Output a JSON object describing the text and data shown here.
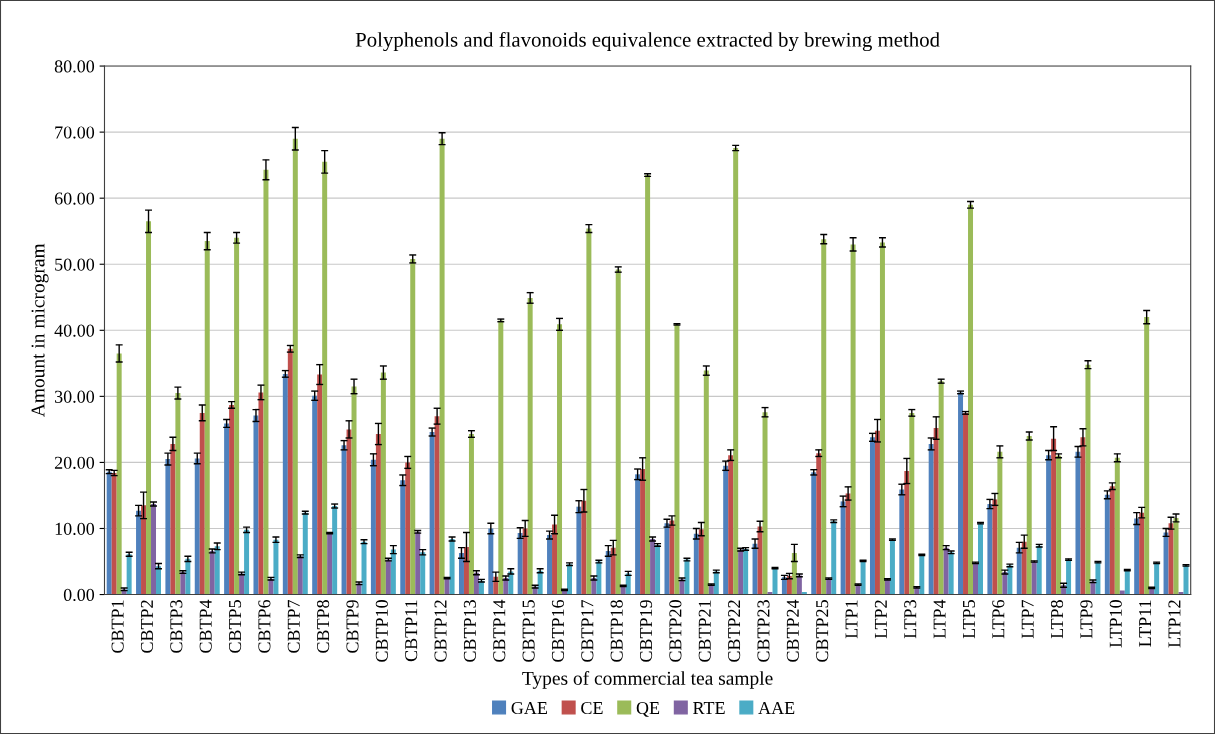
{
  "chart_data": {
    "type": "bar",
    "title": "Polyphenols and flavonoids equivalence extracted by brewing method",
    "xlabel": "Types of commercial tea sample",
    "ylabel": "Amount in microgram",
    "categories": [
      "CBTP1",
      "CBTP2",
      "CBTP3",
      "CBTP4",
      "CBTP5",
      "CBTP6",
      "CBTP7",
      "CBTP8",
      "CBTP9",
      "CBTP10",
      "CBTP11",
      "CBTP12",
      "CBTP13",
      "CBTP14",
      "CBTP15",
      "CBTP16",
      "CBTP17",
      "CBTP18",
      "CBTP19",
      "CBTP20",
      "CBTP21",
      "CBTP22",
      "CBTP23",
      "CBTP24",
      "CBTP25",
      "LTP1",
      "LTP2",
      "LTP3",
      "LTP4",
      "LTP5",
      "LTP6",
      "LTP7",
      "LTP8",
      "LTP9",
      "LTP10",
      "LTP11",
      "LTP12"
    ],
    "series": [
      {
        "name": "GAE",
        "color": "#4f81bd",
        "values": [
          18.6,
          12.7,
          20.5,
          20.6,
          25.9,
          27.1,
          33.4,
          30.1,
          22.6,
          20.4,
          17.3,
          24.6,
          6.3,
          10.0,
          9.3,
          9.0,
          13.3,
          6.6,
          18.2,
          10.8,
          9.2,
          19.5,
          7.7,
          2.6,
          18.5,
          14.1,
          23.8,
          15.9,
          22.8,
          30.6,
          13.7,
          7.1,
          21.1,
          21.6,
          15.1,
          11.5,
          9.4
        ],
        "errors": [
          0.3,
          0.8,
          0.9,
          0.8,
          0.6,
          0.9,
          0.5,
          0.7,
          0.7,
          0.9,
          0.8,
          0.6,
          0.8,
          0.8,
          0.8,
          0.6,
          0.9,
          0.8,
          0.8,
          0.6,
          0.8,
          0.7,
          0.7,
          0.3,
          0.4,
          0.8,
          0.6,
          0.8,
          0.9,
          0.2,
          0.7,
          0.8,
          0.7,
          0.8,
          0.6,
          0.9,
          0.6
        ]
      },
      {
        "name": "CE",
        "color": "#c0504d",
        "values": [
          18.4,
          13.5,
          22.8,
          27.5,
          28.7,
          30.6,
          37.2,
          33.3,
          25.0,
          24.3,
          20.0,
          27.0,
          7.2,
          2.7,
          10.0,
          10.6,
          14.2,
          7.1,
          19.0,
          11.2,
          9.9,
          21.1,
          10.3,
          2.8,
          21.4,
          15.3,
          24.8,
          18.7,
          25.2,
          27.5,
          14.4,
          8.0,
          23.6,
          23.8,
          16.4,
          12.4,
          10.8
        ],
        "errors": [
          0.4,
          2.0,
          1.0,
          1.2,
          0.5,
          1.1,
          0.5,
          1.5,
          1.3,
          1.6,
          0.9,
          1.2,
          2.2,
          0.7,
          1.2,
          1.4,
          1.7,
          1.1,
          1.7,
          0.7,
          1.0,
          0.8,
          0.8,
          0.4,
          0.5,
          1.0,
          1.7,
          1.9,
          1.7,
          0.2,
          0.9,
          1.0,
          1.8,
          1.3,
          0.5,
          0.8,
          0.9
        ]
      },
      {
        "name": "QE",
        "color": "#9bbb59",
        "values": [
          36.5,
          56.5,
          30.5,
          53.5,
          54.0,
          64.3,
          69.0,
          65.5,
          31.5,
          33.6,
          50.8,
          69.0,
          24.3,
          41.5,
          44.9,
          40.9,
          55.4,
          49.2,
          63.5,
          40.9,
          33.9,
          67.6,
          27.6,
          6.3,
          53.8,
          53.0,
          53.3,
          27.5,
          32.3,
          59.0,
          21.6,
          24.0,
          21.0,
          34.8,
          20.7,
          42.0,
          11.6
        ],
        "errors": [
          1.3,
          1.7,
          0.9,
          1.3,
          0.8,
          1.5,
          1.7,
          1.7,
          1.1,
          1.0,
          0.6,
          0.9,
          0.5,
          0.2,
          0.8,
          0.9,
          0.6,
          0.4,
          0.2,
          0.1,
          0.7,
          0.4,
          0.7,
          1.3,
          0.7,
          1.0,
          0.7,
          0.5,
          0.3,
          0.5,
          0.9,
          0.6,
          0.3,
          0.6,
          0.6,
          1.0,
          0.6
        ]
      },
      {
        "name": "RTE",
        "color": "#8064a2",
        "values": [
          0.8,
          13.7,
          3.4,
          6.6,
          3.2,
          2.4,
          5.8,
          9.3,
          1.7,
          5.3,
          9.5,
          2.5,
          3.3,
          2.5,
          1.2,
          0.7,
          2.5,
          1.3,
          8.4,
          2.3,
          1.5,
          6.8,
          0.4,
          2.9,
          2.4,
          1.5,
          2.3,
          1.1,
          7.1,
          4.8,
          3.4,
          5.0,
          1.4,
          2.0,
          0.6,
          1.0,
          0.4
        ],
        "errors": [
          0.2,
          0.3,
          0.2,
          0.3,
          0.2,
          0.2,
          0.2,
          0.1,
          0.2,
          0.2,
          0.2,
          0.1,
          0.3,
          0.3,
          0.2,
          0.1,
          0.3,
          0.1,
          0.3,
          0.2,
          0.1,
          0.2,
          null,
          0.2,
          0.1,
          0.1,
          0.1,
          0.1,
          0.3,
          0.1,
          0.3,
          0.1,
          0.3,
          0.2,
          null,
          0.1,
          null
        ]
      },
      {
        "name": "AAE",
        "color": "#4bacc6",
        "values": [
          6.1,
          4.3,
          5.4,
          7.3,
          9.8,
          8.3,
          12.4,
          13.4,
          8.0,
          6.8,
          6.4,
          8.4,
          2.1,
          3.5,
          3.6,
          4.6,
          5.0,
          3.2,
          7.5,
          5.3,
          3.5,
          6.9,
          4.0,
          0.4,
          11.1,
          5.1,
          8.3,
          6.0,
          6.4,
          10.8,
          4.4,
          7.4,
          5.3,
          4.9,
          3.7,
          4.8,
          4.4
        ],
        "errors": [
          0.3,
          0.4,
          0.4,
          0.5,
          0.4,
          0.4,
          0.2,
          0.3,
          0.3,
          0.6,
          0.4,
          0.3,
          0.2,
          0.4,
          0.3,
          0.2,
          0.2,
          0.3,
          0.2,
          0.2,
          0.2,
          0.2,
          0.1,
          null,
          0.2,
          0.1,
          0.1,
          0.1,
          0.2,
          0.1,
          0.2,
          0.2,
          0.1,
          0.1,
          0.1,
          0.1,
          0.1
        ]
      }
    ],
    "ylim": [
      0,
      80
    ],
    "yticks": [
      {
        "value": 0,
        "label": "0.00"
      },
      {
        "value": 10,
        "label": "10.00"
      },
      {
        "value": 20,
        "label": "20.00"
      },
      {
        "value": 30,
        "label": "30.00"
      },
      {
        "value": 40,
        "label": "40.00"
      },
      {
        "value": 50,
        "label": "50.00"
      },
      {
        "value": 60,
        "label": "60.00"
      },
      {
        "value": 70,
        "label": "70.00"
      },
      {
        "value": 80,
        "label": "80.00"
      }
    ],
    "grid": "y",
    "legend": "bottom"
  }
}
